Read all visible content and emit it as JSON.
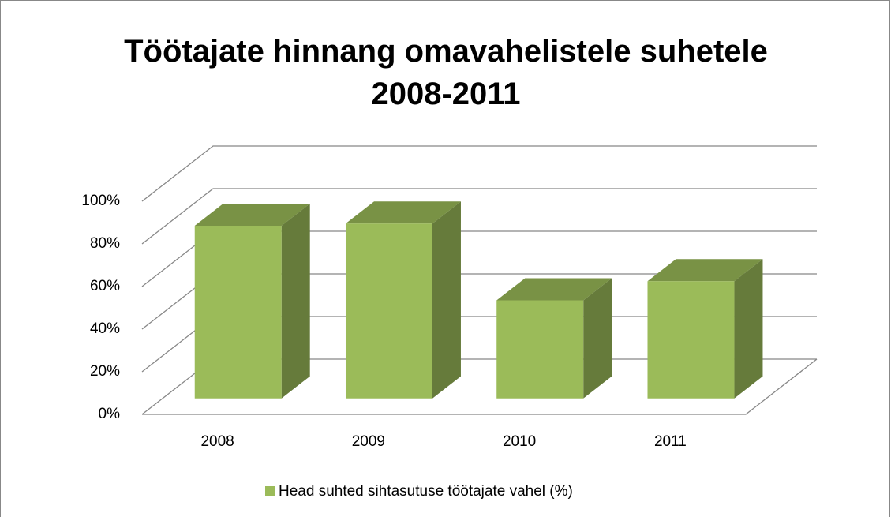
{
  "chart_data": {
    "type": "bar3d",
    "title": "Töötajate hinnang omavahelistele suhetele 2008-2011",
    "categories": [
      "2008",
      "2009",
      "2010",
      "2011"
    ],
    "series": [
      {
        "name": "Head suhted sihtasutuse töötajate vahel (%)",
        "color": "#9bbb59",
        "values": [
          81,
          82,
          46,
          55
        ]
      }
    ],
    "ylim": [
      0,
      100
    ],
    "yticks": [
      {
        "value": 0,
        "label": "0%"
      },
      {
        "value": 20,
        "label": "20%"
      },
      {
        "value": 40,
        "label": "40%"
      },
      {
        "value": 60,
        "label": "60%"
      },
      {
        "value": 80,
        "label": "80%"
      },
      {
        "value": 100,
        "label": "100%"
      }
    ],
    "grid": true,
    "legend": "bottom"
  }
}
